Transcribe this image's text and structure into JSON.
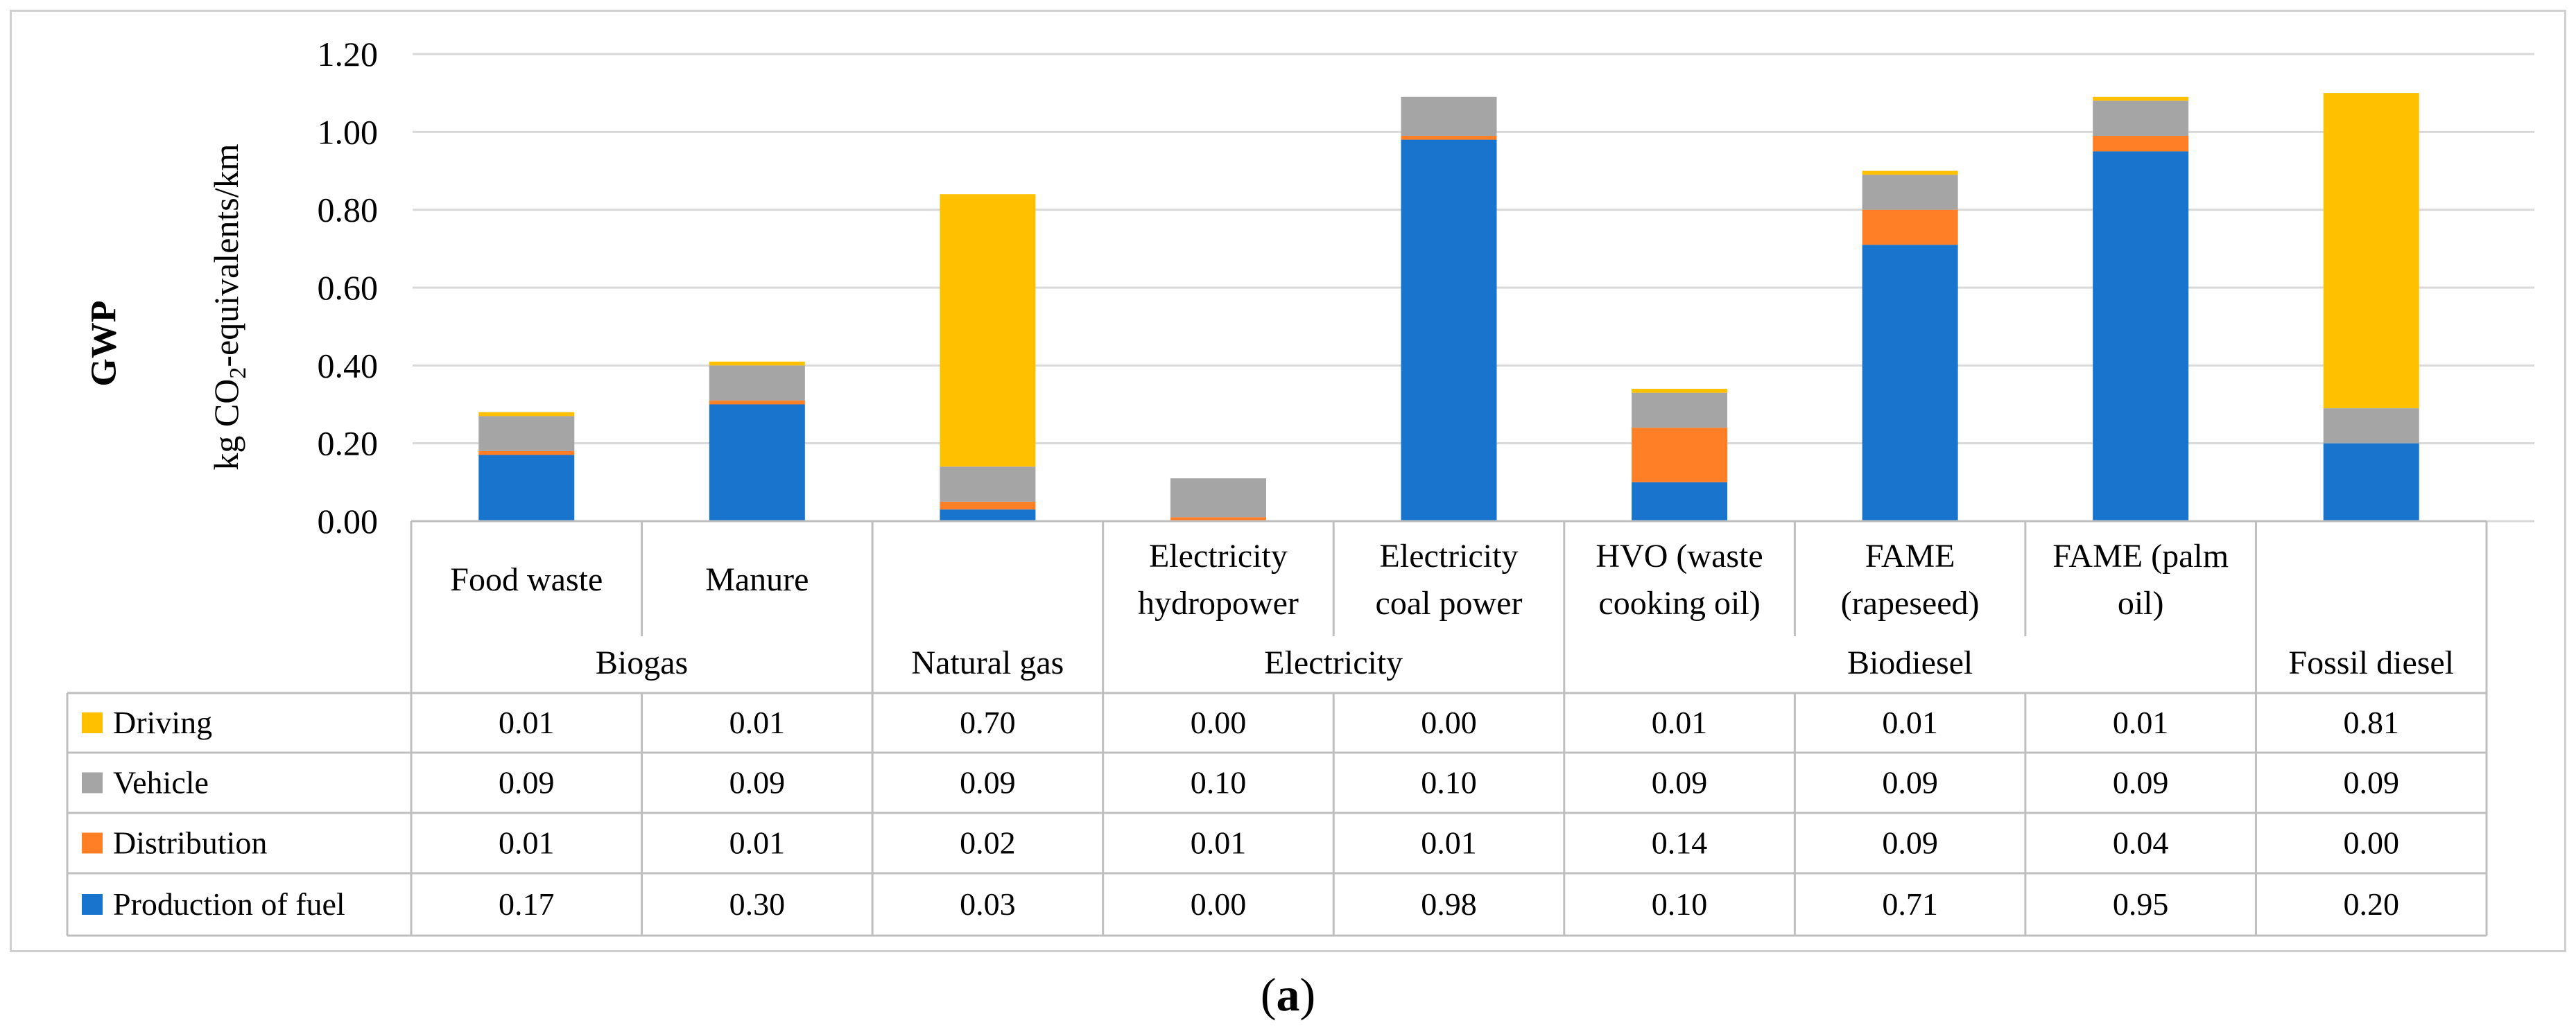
{
  "chart_data": {
    "type": "stacked-bar",
    "yaxis_title": "GWP",
    "yaxis_units": {
      "prefix": "kg CO",
      "subscript": "2",
      "suffix": "-equivalents/km"
    },
    "ylim": [
      0,
      1.2
    ],
    "yticks": [
      "0.00",
      "0.20",
      "0.40",
      "0.60",
      "0.80",
      "1.00",
      "1.20"
    ],
    "grid": true,
    "categories": [
      [
        "Food waste"
      ],
      [
        "Manure"
      ],
      [
        ""
      ],
      [
        "Electricity",
        "hydropower"
      ],
      [
        "Electricity",
        "coal power"
      ],
      [
        "HVO (waste",
        "cooking oil)"
      ],
      [
        "FAME",
        "(rapeseed)"
      ],
      [
        "FAME (palm",
        "oil)"
      ],
      [
        ""
      ]
    ],
    "groups": [
      {
        "label": "Biogas",
        "span": 2
      },
      {
        "label": "Natural gas",
        "span": 1
      },
      {
        "label": "Electricity",
        "span": 2
      },
      {
        "label": "Biodiesel",
        "span": 3
      },
      {
        "label": "Fossil diesel",
        "span": 1
      }
    ],
    "series": [
      {
        "name": "Driving",
        "color": "#FFC000",
        "values": [
          0.01,
          0.01,
          0.7,
          0.0,
          0.0,
          0.01,
          0.01,
          0.01,
          0.81
        ],
        "labels": [
          "0.01",
          "0.01",
          "0.70",
          "0.00",
          "0.00",
          "0.01",
          "0.01",
          "0.01",
          "0.81"
        ]
      },
      {
        "name": "Vehicle",
        "color": "#A5A5A5",
        "values": [
          0.09,
          0.09,
          0.09,
          0.1,
          0.1,
          0.09,
          0.09,
          0.09,
          0.09
        ],
        "labels": [
          "0.09",
          "0.09",
          "0.09",
          "0.10",
          "0.10",
          "0.09",
          "0.09",
          "0.09",
          "0.09"
        ]
      },
      {
        "name": "Distribution",
        "color": "#FF7F27",
        "values": [
          0.01,
          0.01,
          0.02,
          0.01,
          0.01,
          0.14,
          0.09,
          0.04,
          0.0
        ],
        "labels": [
          "0.01",
          "0.01",
          "0.02",
          "0.01",
          "0.01",
          "0.14",
          "0.09",
          "0.04",
          "0.00"
        ]
      },
      {
        "name": "Production of fuel",
        "color": "#1874CD",
        "values": [
          0.17,
          0.3,
          0.03,
          0.0,
          0.98,
          0.1,
          0.71,
          0.95,
          0.2
        ],
        "labels": [
          "0.17",
          "0.30",
          "0.03",
          "0.00",
          "0.98",
          "0.10",
          "0.71",
          "0.95",
          "0.20"
        ]
      }
    ]
  },
  "caption": {
    "open": "(",
    "letter": "a",
    "close": ")"
  }
}
